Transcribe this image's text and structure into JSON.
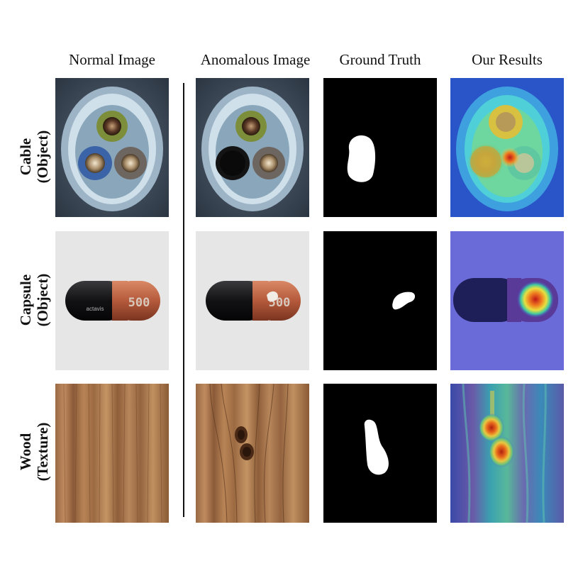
{
  "columns": [
    "Normal Image",
    "Anomalous Image",
    "Ground Truth",
    "Our Results"
  ],
  "rows": [
    {
      "label_line1": "Cable",
      "label_line2": "(Object)"
    },
    {
      "label_line1": "Capsule",
      "label_line2": "(Object)"
    },
    {
      "label_line1": "Wood",
      "label_line2": "(Texture)"
    }
  ],
  "capsule_print": "500",
  "capsule_brand": "actavis"
}
